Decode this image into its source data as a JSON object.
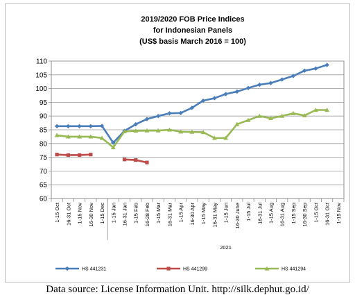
{
  "chart_data": {
    "type": "line",
    "title": [
      "2019/2020 FOB Price Indices",
      "for Indonesian Panels",
      "(US$ basis March 2016 = 100)"
    ],
    "xlabel": "",
    "ylabel": "",
    "ylim": [
      60,
      110
    ],
    "yticks": [
      60,
      65,
      70,
      75,
      80,
      85,
      90,
      95,
      100,
      105,
      110
    ],
    "grid": true,
    "legend_position": "bottom",
    "categories": [
      "1-15 Oct",
      "16-31 Oct",
      "1-15 Nov",
      "16-30 Nov",
      "1-15 Dec",
      "1-15 Jan",
      "16-31 Jan",
      "1-15 Feb",
      "16-28 Feb",
      "1-15 Mar",
      "16-31 Mar",
      "1-15 Apr",
      "16-30 Apr",
      "1-15 May",
      "16-31 May",
      "1-15 Jun",
      "16-30 June",
      "1-15 Jul",
      "16-31 Jul",
      "1-15 Aug",
      "16-31 Aug",
      "1-15 Sep",
      "16-30 Sep",
      "1-15 Oct",
      "16-31 Oct",
      "1-15 Nov"
    ],
    "group_label": "2021",
    "series": [
      {
        "name": "HS 441231",
        "color": "#4a7ebb",
        "marker": "diamond",
        "values": [
          86.3,
          86.3,
          86.3,
          86.3,
          86.4,
          80.3,
          84.6,
          87.0,
          88.9,
          90.0,
          91.0,
          91.1,
          93.0,
          95.6,
          96.5,
          98.0,
          98.9,
          100.2,
          101.4,
          102.0,
          103.3,
          104.6,
          106.5,
          107.3,
          108.6,
          null
        ]
      },
      {
        "name": "HS 441299",
        "color": "#be4b48",
        "marker": "square",
        "values": [
          76.0,
          75.8,
          75.8,
          76.0,
          null,
          null,
          74.2,
          74.0,
          73.1,
          null,
          null,
          null,
          null,
          null,
          null,
          null,
          null,
          null,
          null,
          null,
          null,
          null,
          null,
          null,
          null,
          null
        ]
      },
      {
        "name": "HS 441294",
        "color": "#98b954",
        "marker": "triangle",
        "values": [
          83.0,
          82.5,
          82.5,
          82.5,
          82.0,
          78.6,
          84.4,
          84.6,
          84.7,
          84.7,
          85.0,
          84.3,
          84.2,
          84.1,
          82.0,
          82.0,
          87.0,
          88.5,
          90.0,
          89.2,
          90.0,
          91.0,
          90.2,
          92.2,
          92.2,
          null
        ]
      }
    ]
  },
  "caption": "Data source: License Information Unit. http://silk.dephut.go.id/"
}
